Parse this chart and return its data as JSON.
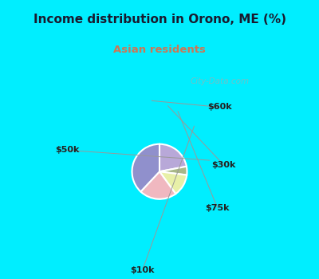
{
  "title": "Income distribution in Orono, ME (%)",
  "subtitle": "Asian residents",
  "title_color": "#1a1a2e",
  "subtitle_color": "#cc7755",
  "bg_cyan": "#00eeff",
  "bg_chart": "#e8f5ee",
  "labels": [
    "$60k",
    "$30k",
    "$75k",
    "$10k",
    "$50k"
  ],
  "sizes": [
    22,
    5,
    13,
    22,
    38
  ],
  "colors": [
    "#b8a8d8",
    "#a8b888",
    "#e8f0a8",
    "#f0b8c0",
    "#9090cc"
  ],
  "startangle": 90,
  "watermark": "City-Data.com",
  "figsize": [
    4.0,
    3.5
  ],
  "dpi": 100
}
